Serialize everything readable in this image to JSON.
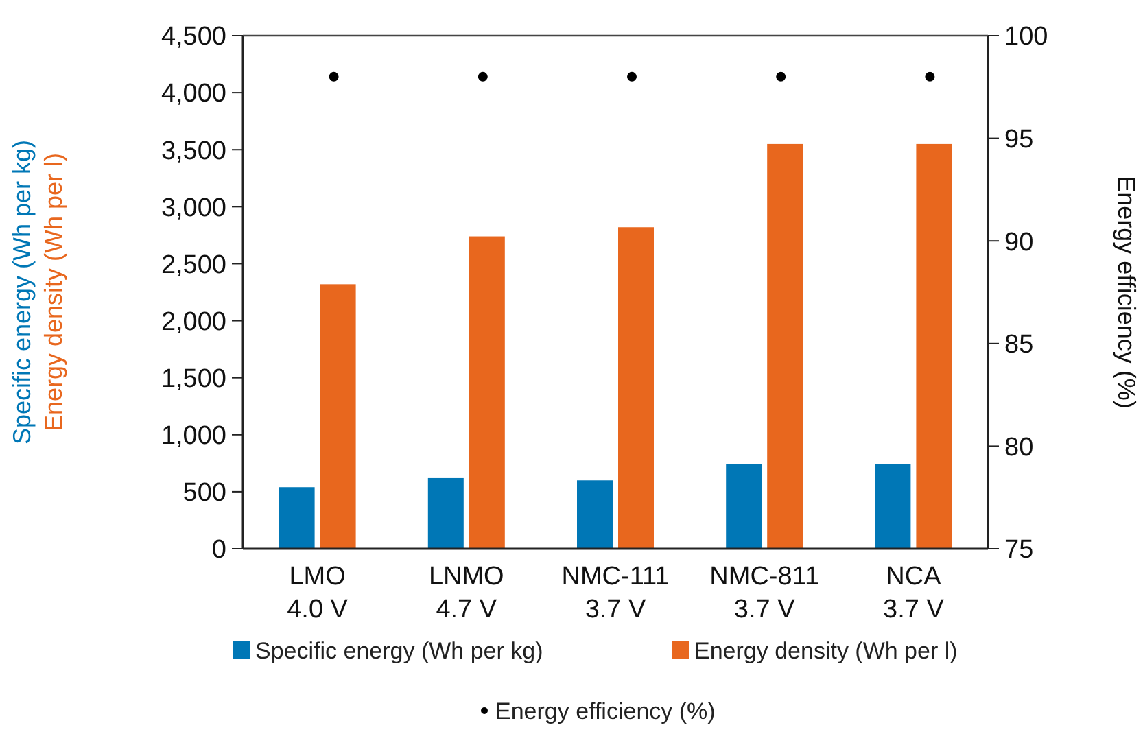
{
  "chart_data": {
    "type": "bar",
    "categories": [
      "LMO\n4.0 V",
      "LNMO\n4.7 V",
      "NMC-111\n3.7 V",
      "NMC-811\n3.7 V",
      "NCA\n3.7 V"
    ],
    "ylabel": "Specific energy (Wh per kg)\nEnergy density (Wh per l)",
    "y2label": "Energy efficiency (%)",
    "series": [
      {
        "name": "Specific energy (Wh per kg)",
        "color": "#0077b6",
        "values": [
          540,
          620,
          600,
          740,
          740
        ]
      },
      {
        "name": "Energy density (Wh per l)",
        "color": "#e8671e",
        "values": [
          2320,
          2740,
          2820,
          3550,
          3550
        ]
      },
      {
        "name": "Energy efficiency (%)",
        "type": "scatter",
        "axis": "y2",
        "marker": "circle",
        "color": "#000000",
        "values": [
          98,
          98,
          98,
          98,
          98
        ]
      }
    ],
    "ylim": [
      0,
      4500
    ],
    "yticks": [
      {
        "value": 0,
        "label": "0"
      },
      {
        "value": 500,
        "label": "500"
      },
      {
        "value": 1000,
        "label": "1,000"
      },
      {
        "value": 1500,
        "label": "1,500"
      },
      {
        "value": 2000,
        "label": "2,000"
      },
      {
        "value": 2500,
        "label": "2,500"
      },
      {
        "value": 3000,
        "label": "3,000"
      },
      {
        "value": 3500,
        "label": "3,500"
      },
      {
        "value": 4000,
        "label": "4,000"
      },
      {
        "value": 4500,
        "label": "4,500"
      }
    ],
    "y2lim": [
      75,
      100
    ],
    "y2ticks": [
      75,
      80,
      85,
      90,
      95,
      100
    ],
    "grid": false,
    "legend": "bottom"
  }
}
